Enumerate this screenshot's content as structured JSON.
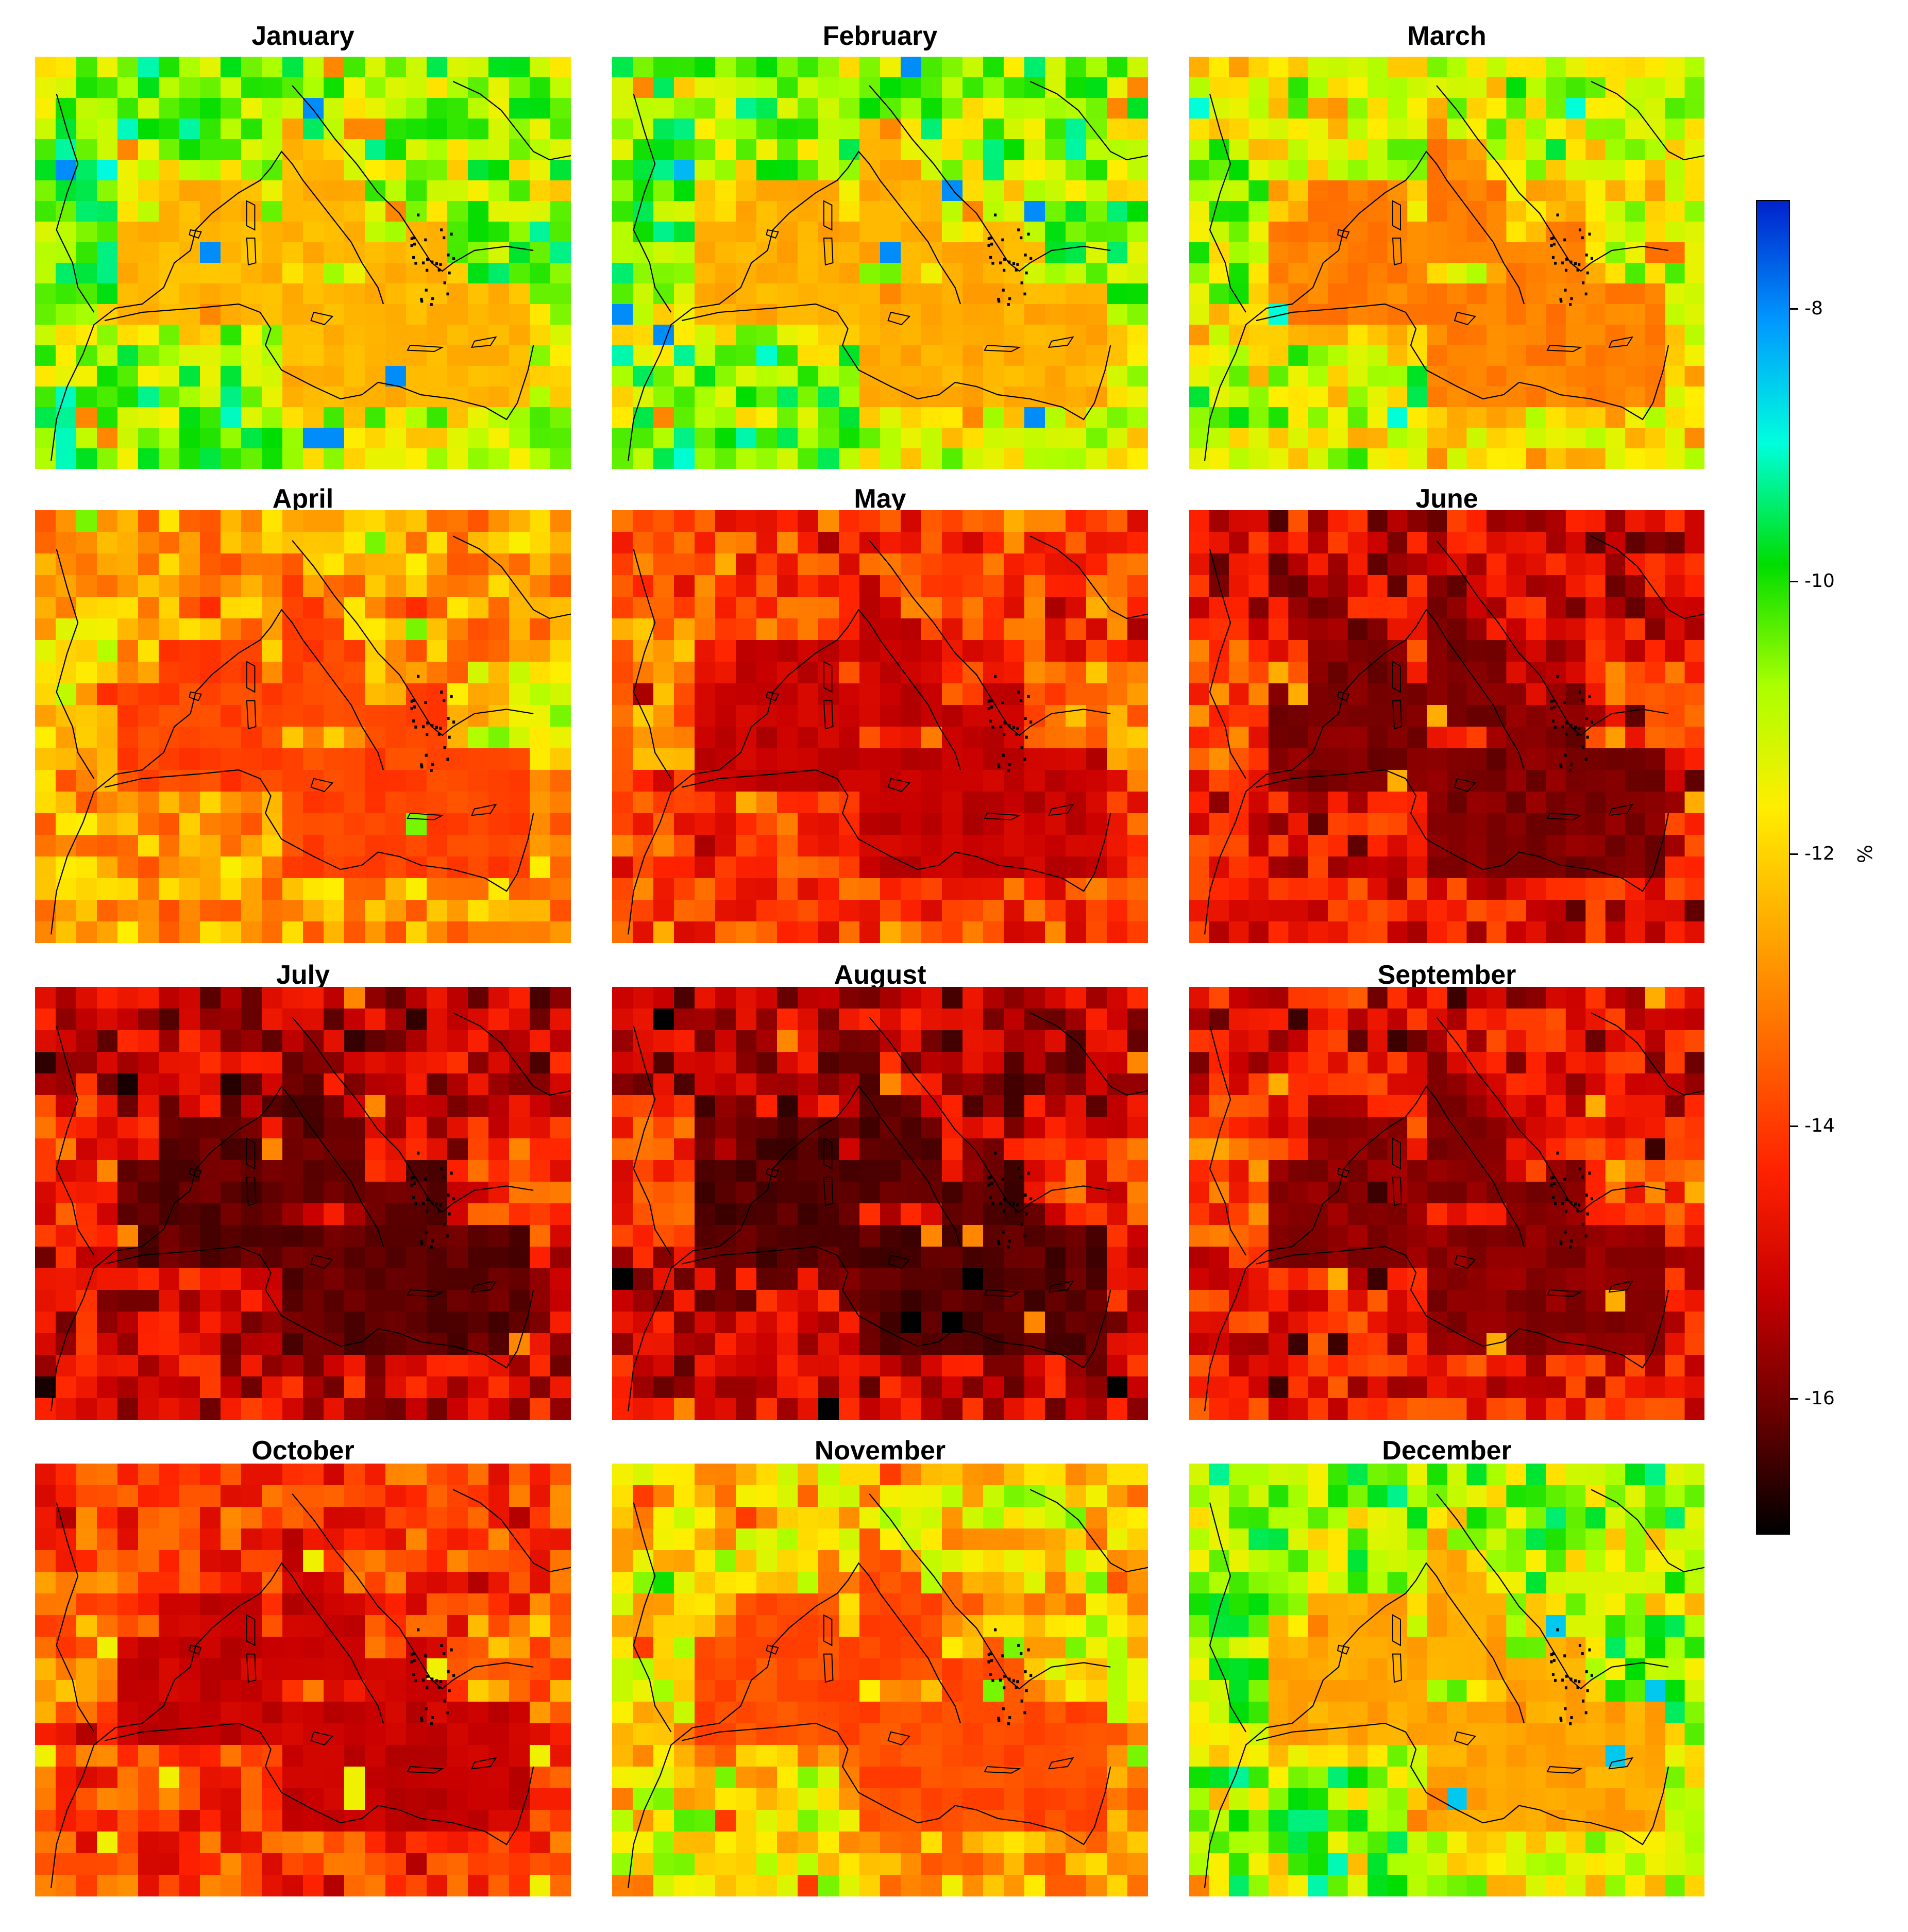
{
  "figure": {
    "months": [
      "January",
      "February",
      "March",
      "April",
      "May",
      "June",
      "July",
      "August",
      "September",
      "October",
      "November",
      "December"
    ]
  },
  "colorbar": {
    "unit": "%",
    "ticks": [
      "-8",
      "-10",
      "-12",
      "-14",
      "-16"
    ],
    "tick_values": [
      -8,
      -10,
      -12,
      -14,
      -16
    ],
    "range": [
      -17,
      -7.2
    ],
    "stops": [
      "#000000",
      "#6b0000",
      "#c80000",
      "#ff2200",
      "#ff6600",
      "#ffaa00",
      "#ffee00",
      "#aaff00",
      "#00dd00",
      "#00ffdd",
      "#0099ff",
      "#0022cc"
    ]
  },
  "chart_data": {
    "type": "heatmap",
    "title": "",
    "panels": [
      "January",
      "February",
      "March",
      "April",
      "May",
      "June",
      "July",
      "August",
      "September",
      "October",
      "November",
      "December"
    ],
    "colorbar_label": "%",
    "value_range": [
      -17,
      -7.2
    ],
    "panel_means": [
      -11.8,
      -11.9,
      -12.5,
      -13.3,
      -14.6,
      -15.3,
      -15.6,
      -15.7,
      -15.2,
      -14.6,
      -13.2,
      -12.0
    ],
    "panel_minima": [
      -13.0,
      -13.0,
      -13.3,
      -14.2,
      -15.5,
      -16.2,
      -16.8,
      -17.0,
      -16.5,
      -15.4,
      -14.0,
      -13.1
    ],
    "panel_maxima": [
      -8.0,
      -8.0,
      -9.0,
      -10.5,
      -12.5,
      -12.5,
      -13.0,
      -13.0,
      -12.5,
      -11.5,
      -10.5,
      -8.5
    ]
  }
}
